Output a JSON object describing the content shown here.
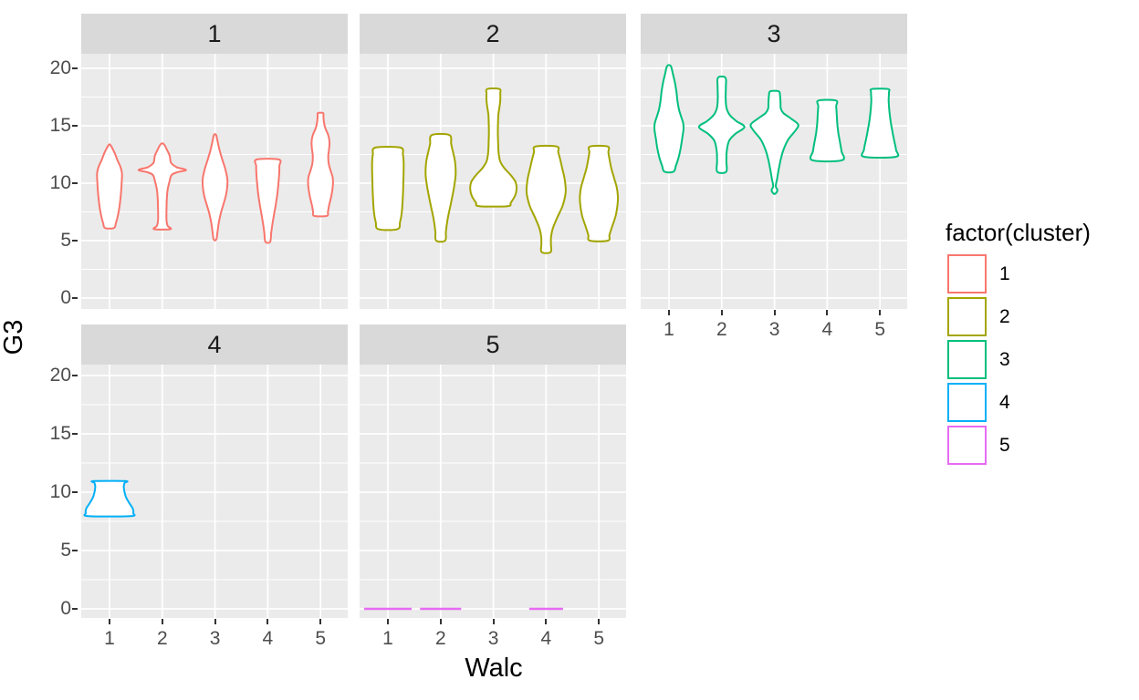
{
  "chart_data": {
    "type": "violin",
    "title": "",
    "xlabel": "Walc",
    "ylabel": "G3",
    "facet_variable": "cluster",
    "x_ticks": [
      "1",
      "2",
      "3",
      "4",
      "5"
    ],
    "y_ticks": [
      0,
      5,
      10,
      15,
      20
    ],
    "y_minor_ticks": [
      2.5,
      7.5,
      12.5,
      17.5
    ],
    "xlim": [
      0.46,
      5.52
    ],
    "ylim": [
      -1,
      21.3
    ],
    "grid": "on",
    "legend_position": "right",
    "legend": {
      "title": "factor(cluster)",
      "entries": [
        {
          "label": "1",
          "color": "#F8766D"
        },
        {
          "label": "2",
          "color": "#A3A500"
        },
        {
          "label": "3",
          "color": "#00BF7D"
        },
        {
          "label": "4",
          "color": "#00B0F6"
        },
        {
          "label": "5",
          "color": "#E76BF3"
        }
      ]
    },
    "colors": {
      "panel_background": "#EBEBEB",
      "strip_background": "#D9D9D9",
      "gridline": "#FFFFFF",
      "axis_text": "#4D4D4D",
      "strip_text": "#1A1A1A",
      "tick_mark": "#333333",
      "violin_fill": "#FFFFFF"
    },
    "panels": [
      {
        "label": "1",
        "cluster": "1",
        "color": "#F8766D",
        "violins": [
          {
            "x": 1,
            "points": [
              [
                6.1,
                0.085
              ],
              [
                6.5,
                0.12
              ],
              [
                7.2,
                0.16
              ],
              [
                8,
                0.19
              ],
              [
                9,
                0.215
              ],
              [
                10,
                0.23
              ],
              [
                10.9,
                0.235
              ],
              [
                11.5,
                0.2
              ],
              [
                12,
                0.15
              ],
              [
                12.6,
                0.1
              ],
              [
                13.3,
                0.02
              ]
            ]
          },
          {
            "x": 2,
            "points": [
              [
                6.0,
                0.155
              ],
              [
                6.3,
                0.1
              ],
              [
                6.8,
                0.08
              ],
              [
                7.6,
                0.08
              ],
              [
                8.5,
                0.085
              ],
              [
                9.4,
                0.1
              ],
              [
                10.1,
                0.135
              ],
              [
                10.7,
                0.175
              ],
              [
                10.95,
                0.28
              ],
              [
                11.15,
                0.45
              ],
              [
                11.4,
                0.27
              ],
              [
                11.75,
                0.17
              ],
              [
                12.1,
                0.15
              ],
              [
                12.4,
                0.14
              ],
              [
                12.85,
                0.095
              ],
              [
                13.4,
                0.03
              ]
            ]
          },
          {
            "x": 3,
            "points": [
              [
                5.1,
                0.025
              ],
              [
                5.7,
                0.045
              ],
              [
                6.5,
                0.07
              ],
              [
                7.3,
                0.105
              ],
              [
                8.1,
                0.155
              ],
              [
                9,
                0.21
              ],
              [
                9.9,
                0.235
              ],
              [
                10.5,
                0.23
              ],
              [
                11.3,
                0.19
              ],
              [
                12.1,
                0.135
              ],
              [
                12.9,
                0.085
              ],
              [
                13.6,
                0.05
              ],
              [
                14.2,
                0.02
              ]
            ]
          },
          {
            "x": 4,
            "points": [
              [
                4.9,
                0.045
              ],
              [
                5.7,
                0.065
              ],
              [
                6.5,
                0.09
              ],
              [
                7.3,
                0.12
              ],
              [
                8.1,
                0.15
              ],
              [
                9,
                0.18
              ],
              [
                9.9,
                0.2
              ],
              [
                10.7,
                0.215
              ],
              [
                11.5,
                0.22
              ],
              [
                12.06,
                0.21
              ]
            ]
          },
          {
            "x": 5,
            "points": [
              [
                7.15,
                0.12
              ],
              [
                7.5,
                0.14
              ],
              [
                8,
                0.16
              ],
              [
                9,
                0.21
              ],
              [
                9.9,
                0.235
              ],
              [
                10.5,
                0.23
              ],
              [
                11.1,
                0.19
              ],
              [
                11.7,
                0.155
              ],
              [
                12.4,
                0.147
              ],
              [
                13,
                0.163
              ],
              [
                13.6,
                0.17
              ],
              [
                14.2,
                0.145
              ],
              [
                14.8,
                0.09
              ],
              [
                15.3,
                0.065
              ],
              [
                15.8,
                0.055
              ],
              [
                16.1,
                0.05
              ]
            ]
          }
        ],
        "flat_lines": []
      },
      {
        "label": "2",
        "cluster": "2",
        "color": "#A3A500",
        "violins": [
          {
            "x": 1,
            "points": [
              [
                6,
                0.18
              ],
              [
                6.6,
                0.23
              ],
              [
                7.5,
                0.265
              ],
              [
                9,
                0.285
              ],
              [
                10.5,
                0.295
              ],
              [
                11.7,
                0.3
              ],
              [
                12.5,
                0.285
              ],
              [
                13.1,
                0.235
              ]
            ]
          },
          {
            "x": 2,
            "points": [
              [
                5,
                0.085
              ],
              [
                5.8,
                0.1
              ],
              [
                6.8,
                0.13
              ],
              [
                7.8,
                0.175
              ],
              [
                8.8,
                0.22
              ],
              [
                9.8,
                0.26
              ],
              [
                10.8,
                0.285
              ],
              [
                11.8,
                0.275
              ],
              [
                12.6,
                0.24
              ],
              [
                13.4,
                0.2
              ],
              [
                14.2,
                0.165
              ]
            ]
          },
          {
            "x": 3,
            "points": [
              [
                8,
                0.27
              ],
              [
                8.3,
                0.33
              ],
              [
                8.9,
                0.41
              ],
              [
                9.5,
                0.44
              ],
              [
                10.1,
                0.42
              ],
              [
                10.7,
                0.33
              ],
              [
                11.3,
                0.21
              ],
              [
                11.9,
                0.13
              ],
              [
                12.6,
                0.1
              ],
              [
                13.5,
                0.09
              ],
              [
                14.4,
                0.085
              ],
              [
                15.3,
                0.088
              ],
              [
                16,
                0.095
              ],
              [
                16.6,
                0.115
              ],
              [
                17.2,
                0.13
              ],
              [
                17.8,
                0.13
              ],
              [
                18.2,
                0.115
              ]
            ]
          },
          {
            "x": 4,
            "points": [
              [
                4,
                0.085
              ],
              [
                4.7,
                0.09
              ],
              [
                5.4,
                0.095
              ],
              [
                6.1,
                0.13
              ],
              [
                7,
                0.21
              ],
              [
                8,
                0.31
              ],
              [
                9,
                0.365
              ],
              [
                9.6,
                0.37
              ],
              [
                10.4,
                0.35
              ],
              [
                11.2,
                0.31
              ],
              [
                12,
                0.27
              ],
              [
                12.7,
                0.23
              ],
              [
                13.2,
                0.2
              ]
            ]
          },
          {
            "x": 5,
            "points": [
              [
                5,
                0.17
              ],
              [
                5.5,
                0.2
              ],
              [
                6.2,
                0.25
              ],
              [
                7.2,
                0.32
              ],
              [
                8.2,
                0.355
              ],
              [
                8.9,
                0.36
              ],
              [
                9.7,
                0.335
              ],
              [
                10.5,
                0.285
              ],
              [
                11.3,
                0.235
              ],
              [
                12.1,
                0.2
              ],
              [
                12.7,
                0.18
              ],
              [
                13.2,
                0.165
              ]
            ]
          }
        ],
        "flat_lines": []
      },
      {
        "label": "3",
        "cluster": "3",
        "color": "#00BF7D",
        "violins": [
          {
            "x": 1,
            "points": [
              [
                11,
                0.085
              ],
              [
                11.5,
                0.13
              ],
              [
                12.2,
                0.18
              ],
              [
                13,
                0.22
              ],
              [
                13.9,
                0.25
              ],
              [
                14.7,
                0.275
              ],
              [
                15.2,
                0.27
              ],
              [
                15.8,
                0.23
              ],
              [
                16.4,
                0.19
              ],
              [
                17.2,
                0.16
              ],
              [
                18,
                0.14
              ],
              [
                18.8,
                0.11
              ],
              [
                19.5,
                0.075
              ],
              [
                20.2,
                0.035
              ]
            ]
          },
          {
            "x": 2,
            "points": [
              [
                11,
                0.085
              ],
              [
                11.9,
                0.088
              ],
              [
                12.8,
                0.095
              ],
              [
                13.7,
                0.14
              ],
              [
                14.3,
                0.26
              ],
              [
                14.9,
                0.43
              ],
              [
                15.4,
                0.28
              ],
              [
                15.9,
                0.16
              ],
              [
                16.4,
                0.1
              ],
              [
                17,
                0.078
              ],
              [
                17.7,
                0.075
              ],
              [
                18.4,
                0.078
              ],
              [
                19.2,
                0.07
              ]
            ]
          },
          {
            "x": 3,
            "points": [
              [
                9.1,
                0.02
              ],
              [
                9.4,
                0.055
              ],
              [
                9.75,
                0.025
              ],
              [
                10.4,
                0.05
              ],
              [
                11.2,
                0.08
              ],
              [
                12,
                0.115
              ],
              [
                12.9,
                0.17
              ],
              [
                13.8,
                0.26
              ],
              [
                14.6,
                0.4
              ],
              [
                15.1,
                0.45
              ],
              [
                15.6,
                0.32
              ],
              [
                16.1,
                0.17
              ],
              [
                16.5,
                0.12
              ],
              [
                17,
                0.115
              ],
              [
                17.6,
                0.105
              ],
              [
                18,
                0.08
              ]
            ]
          },
          {
            "x": 4,
            "points": [
              [
                12,
                0.28
              ],
              [
                12.8,
                0.27
              ],
              [
                13.6,
                0.24
              ],
              [
                14.4,
                0.21
              ],
              [
                15.2,
                0.19
              ],
              [
                16,
                0.18
              ],
              [
                16.7,
                0.17
              ],
              [
                17.2,
                0.165
              ]
            ]
          },
          {
            "x": 5,
            "points": [
              [
                12.3,
                0.3
              ],
              [
                12.9,
                0.305
              ],
              [
                13.7,
                0.27
              ],
              [
                14.5,
                0.235
              ],
              [
                15.3,
                0.205
              ],
              [
                16.2,
                0.18
              ],
              [
                17.2,
                0.165
              ],
              [
                17.9,
                0.17
              ],
              [
                18.2,
                0.15
              ]
            ]
          }
        ],
        "flat_lines": []
      },
      {
        "label": "4",
        "cluster": "4",
        "color": "#00B0F6",
        "violins": [
          {
            "x": 1,
            "points": [
              [
                7.95,
                0.4
              ],
              [
                8.2,
                0.45
              ],
              [
                8.6,
                0.44
              ],
              [
                9.1,
                0.37
              ],
              [
                9.6,
                0.31
              ],
              [
                10.1,
                0.28
              ],
              [
                10.5,
                0.27
              ],
              [
                10.8,
                0.285
              ],
              [
                10.95,
                0.3
              ]
            ]
          }
        ],
        "flat_lines": []
      },
      {
        "label": "5",
        "cluster": "5",
        "color": "#E76BF3",
        "violins": [],
        "flat_lines": [
          {
            "x": 1,
            "y": 0,
            "halfwidth": 0.45
          },
          {
            "x": 2,
            "y": 0,
            "halfwidth": 0.39
          },
          {
            "x": 4,
            "y": 0,
            "halfwidth": 0.32
          }
        ]
      }
    ]
  }
}
